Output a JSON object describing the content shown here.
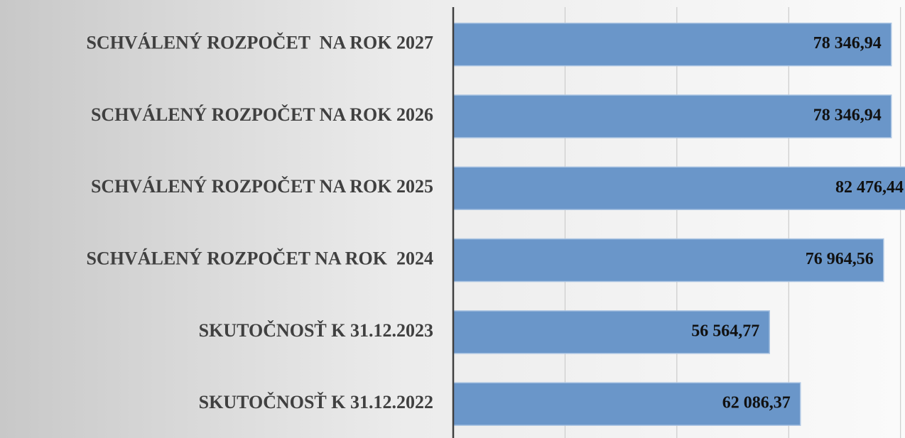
{
  "chart_data": {
    "type": "barh",
    "categories": [
      "SCHVÁLENÝ ROZPOČET  NA ROK 2027",
      "SCHVÁLENÝ ROZPOČET NA ROK 2026",
      "SCHVÁLENÝ ROZPOČET NA ROK 2025",
      "SCHVÁLENÝ ROZPOČET NA ROK  2024",
      "SKUTOČNOSŤ K 31.12.2023",
      "SKUTOČNOSŤ K 31.12.2022"
    ],
    "values": [
      78346.94,
      78346.94,
      82476.44,
      76964.56,
      56564.77,
      62086.37
    ],
    "value_labels": [
      "78 346,94",
      "78 346,94",
      "82 476,44",
      "76 964,56",
      "56 564,77",
      "62 086,37"
    ],
    "color": "#6a96c9",
    "xlim": [
      0,
      80800
    ],
    "xticks": [
      0,
      20000,
      40000,
      60000,
      80000
    ],
    "grid": true
  }
}
